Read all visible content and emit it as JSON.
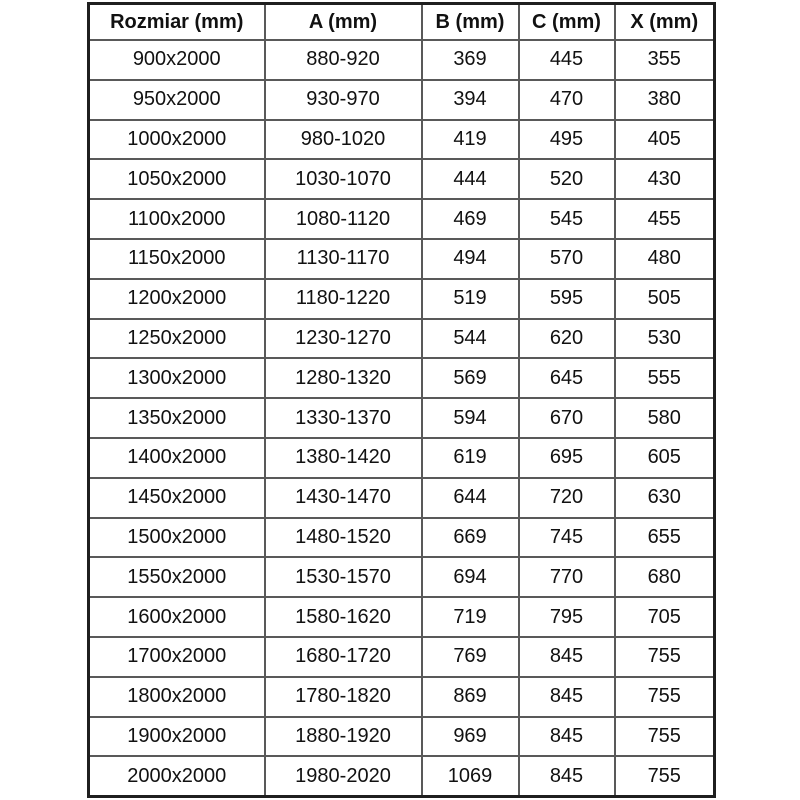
{
  "chart_data": {
    "type": "table",
    "columns": [
      "Rozmiar (mm)",
      "A (mm)",
      "B (mm)",
      "C (mm)",
      "X (mm)"
    ],
    "rows": [
      [
        "900x2000",
        "880-920",
        "369",
        "445",
        "355"
      ],
      [
        "950x2000",
        "930-970",
        "394",
        "470",
        "380"
      ],
      [
        "1000x2000",
        "980-1020",
        "419",
        "495",
        "405"
      ],
      [
        "1050x2000",
        "1030-1070",
        "444",
        "520",
        "430"
      ],
      [
        "1100x2000",
        "1080-1120",
        "469",
        "545",
        "455"
      ],
      [
        "1150x2000",
        "1130-1170",
        "494",
        "570",
        "480"
      ],
      [
        "1200x2000",
        "1180-1220",
        "519",
        "595",
        "505"
      ],
      [
        "1250x2000",
        "1230-1270",
        "544",
        "620",
        "530"
      ],
      [
        "1300x2000",
        "1280-1320",
        "569",
        "645",
        "555"
      ],
      [
        "1350x2000",
        "1330-1370",
        "594",
        "670",
        "580"
      ],
      [
        "1400x2000",
        "1380-1420",
        "619",
        "695",
        "605"
      ],
      [
        "1450x2000",
        "1430-1470",
        "644",
        "720",
        "630"
      ],
      [
        "1500x2000",
        "1480-1520",
        "669",
        "745",
        "655"
      ],
      [
        "1550x2000",
        "1530-1570",
        "694",
        "770",
        "680"
      ],
      [
        "1600x2000",
        "1580-1620",
        "719",
        "795",
        "705"
      ],
      [
        "1700x2000",
        "1680-1720",
        "769",
        "845",
        "755"
      ],
      [
        "1800x2000",
        "1780-1820",
        "869",
        "845",
        "755"
      ],
      [
        "1900x2000",
        "1880-1920",
        "969",
        "845",
        "755"
      ],
      [
        "2000x2000",
        "1980-2020",
        "1069",
        "845",
        "755"
      ]
    ],
    "layout": {
      "grid": true,
      "header_bold": true
    },
    "colors": {
      "background": "#ffffff",
      "outer_border": "#1f1f1f",
      "grid_line": "#595959",
      "text": "#111111"
    }
  }
}
